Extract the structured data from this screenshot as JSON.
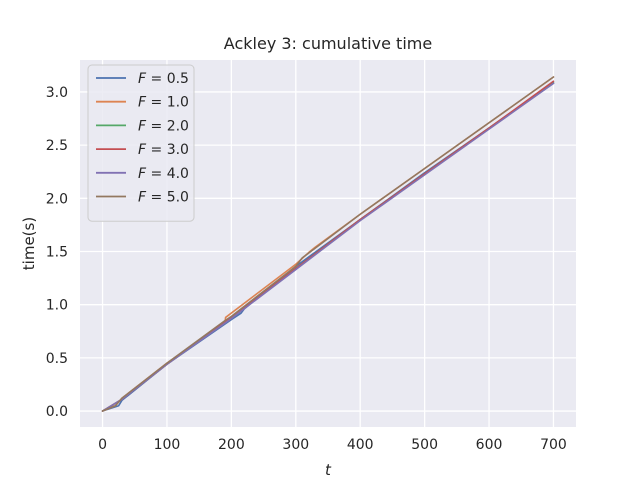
{
  "chart_data": {
    "type": "line",
    "title": "Ackley 3: cumulative time",
    "xlabel": "t",
    "ylabel": "time(s)",
    "xlim": [
      -35,
      735
    ],
    "ylim": [
      -0.15,
      3.3
    ],
    "xticks": [
      0,
      100,
      200,
      300,
      400,
      500,
      600,
      700
    ],
    "yticks": [
      0.0,
      0.5,
      1.0,
      1.5,
      2.0,
      2.5,
      3.0
    ],
    "xtick_labels": [
      "0",
      "100",
      "200",
      "300",
      "400",
      "500",
      "600",
      "700"
    ],
    "ytick_labels": [
      "0.0",
      "0.5",
      "1.0",
      "1.5",
      "2.0",
      "2.5",
      "3.0"
    ],
    "grid": true,
    "legend_position": "top-left",
    "series": [
      {
        "name": "F = 0.5",
        "legend_prefix": "F",
        "legend_value": "0.5",
        "color": "#4c72b0",
        "x": [
          0,
          25,
          28,
          30,
          100,
          200,
          215,
          220,
          300,
          400,
          500,
          600,
          700
        ],
        "y": [
          0.0,
          0.05,
          0.08,
          0.1,
          0.44,
          0.86,
          0.92,
          0.96,
          1.36,
          1.8,
          2.24,
          2.66,
          3.08
        ]
      },
      {
        "name": "F = 1.0",
        "legend_prefix": "F",
        "legend_value": "1.0",
        "color": "#dd8452",
        "x": [
          0,
          20,
          30,
          100,
          190,
          191,
          300,
          320,
          330,
          400,
          500,
          600,
          700
        ],
        "y": [
          0.0,
          0.05,
          0.12,
          0.45,
          0.83,
          0.88,
          1.38,
          1.49,
          1.54,
          1.85,
          2.28,
          2.71,
          3.14
        ]
      },
      {
        "name": "F = 2.0",
        "legend_prefix": "F",
        "legend_value": "2.0",
        "color": "#55a868",
        "x": [
          0,
          30,
          100,
          200,
          300,
          400,
          500,
          600,
          700
        ],
        "y": [
          0.0,
          0.11,
          0.44,
          0.88,
          1.34,
          1.8,
          2.23,
          2.66,
          3.09
        ]
      },
      {
        "name": "F = 3.0",
        "legend_prefix": "F",
        "legend_value": "3.0",
        "color": "#c44e52",
        "x": [
          0,
          30,
          100,
          200,
          300,
          400,
          500,
          600,
          700
        ],
        "y": [
          0.0,
          0.11,
          0.44,
          0.88,
          1.34,
          1.8,
          2.23,
          2.66,
          3.1
        ]
      },
      {
        "name": "F = 4.0",
        "legend_prefix": "F",
        "legend_value": "4.0",
        "color": "#8172b3",
        "x": [
          0,
          30,
          100,
          200,
          300,
          400,
          500,
          600,
          700
        ],
        "y": [
          0.0,
          0.11,
          0.44,
          0.87,
          1.33,
          1.79,
          2.22,
          2.65,
          3.08
        ]
      },
      {
        "name": "F = 5.0",
        "legend_prefix": "F",
        "legend_value": "5.0",
        "color": "#937860",
        "x": [
          0,
          20,
          30,
          100,
          190,
          200,
          300,
          310,
          330,
          400,
          500,
          600,
          700
        ],
        "y": [
          0.0,
          0.05,
          0.12,
          0.45,
          0.85,
          0.89,
          1.36,
          1.44,
          1.53,
          1.85,
          2.28,
          2.71,
          3.14
        ]
      }
    ]
  }
}
